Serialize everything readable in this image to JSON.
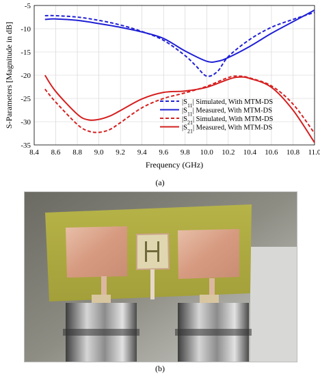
{
  "chart_data": {
    "type": "line",
    "xlabel": "Frequency (GHz)",
    "ylabel": "S-Parameters [Magnitude in dB]",
    "xlim": [
      8.4,
      11.0
    ],
    "ylim": [
      -35,
      -5
    ],
    "xticks": [
      "8.4",
      "8.6",
      "8.8",
      "9.0",
      "9.2",
      "9.4",
      "9.6",
      "9.8",
      "10.0",
      "10.2",
      "10.4",
      "10.6",
      "10.8",
      "11.0"
    ],
    "yticks": [
      "-5",
      "-10",
      "-15",
      "-20",
      "-25",
      "-30",
      "-35"
    ],
    "grid": true,
    "legend_position": "lower-right",
    "series": [
      {
        "name": "|S11| Simulated, With MTM-DS",
        "label_main": "S",
        "label_sub": "11",
        "label_rest": "Simulated, With MTM-DS",
        "color": "#1f1fd6",
        "dash": true,
        "x": [
          8.5,
          8.6,
          8.8,
          9.0,
          9.2,
          9.4,
          9.6,
          9.8,
          9.9,
          10.0,
          10.1,
          10.2,
          10.4,
          10.6,
          10.8,
          11.0
        ],
        "y": [
          -7.2,
          -7.2,
          -7.5,
          -8.2,
          -9.2,
          -10.6,
          -12.5,
          -15.8,
          -18.0,
          -20.2,
          -19.2,
          -16.0,
          -12.3,
          -9.7,
          -8.0,
          -6.5
        ]
      },
      {
        "name": "|S11| Measured, With MTM-DS",
        "label_main": "S",
        "label_sub": "11",
        "label_rest": "Measured, With MTM-DS",
        "color": "#1f1fd6",
        "dash": false,
        "x": [
          8.5,
          8.6,
          8.8,
          9.0,
          9.2,
          9.4,
          9.6,
          9.8,
          10.0,
          10.1,
          10.2,
          10.4,
          10.6,
          10.8,
          11.0
        ],
        "y": [
          -8.0,
          -7.9,
          -8.2,
          -8.9,
          -9.7,
          -10.7,
          -12.1,
          -14.8,
          -17.0,
          -17.0,
          -16.2,
          -13.8,
          -11.0,
          -8.5,
          -6.0
        ]
      },
      {
        "name": "|S21| Simulated, With MTM-DS",
        "label_main": "S",
        "label_sub": "21",
        "label_rest": "Simulated, With MTM-DS",
        "color": "#d61f1f",
        "dash": true,
        "x": [
          8.5,
          8.6,
          8.8,
          8.9,
          9.0,
          9.1,
          9.2,
          9.4,
          9.6,
          9.8,
          10.0,
          10.2,
          10.3,
          10.4,
          10.6,
          10.8,
          11.0
        ],
        "y": [
          -23.0,
          -25.8,
          -30.6,
          -32.0,
          -32.3,
          -31.7,
          -30.2,
          -27.0,
          -25.0,
          -23.8,
          -22.4,
          -20.5,
          -20.2,
          -20.6,
          -22.3,
          -26.2,
          -32.5
        ]
      },
      {
        "name": "|S21| Measured, With MTM-DS",
        "label_main": "S",
        "label_sub": "21",
        "label_rest": "Measured, With MTM-DS",
        "color": "#d61f1f",
        "dash": false,
        "x": [
          8.5,
          8.6,
          8.8,
          8.9,
          9.0,
          9.1,
          9.2,
          9.4,
          9.6,
          9.8,
          10.0,
          10.2,
          10.3,
          10.4,
          10.6,
          10.8,
          11.0
        ],
        "y": [
          -20.0,
          -23.5,
          -28.4,
          -29.6,
          -29.5,
          -28.8,
          -27.6,
          -25.1,
          -23.7,
          -23.4,
          -22.6,
          -20.9,
          -20.4,
          -20.7,
          -22.6,
          -27.5,
          -34.5
        ]
      }
    ]
  },
  "panels": {
    "a": "(a)",
    "b": "(b)"
  },
  "photo": {
    "description_icon": "antenna-prototype-photo"
  }
}
